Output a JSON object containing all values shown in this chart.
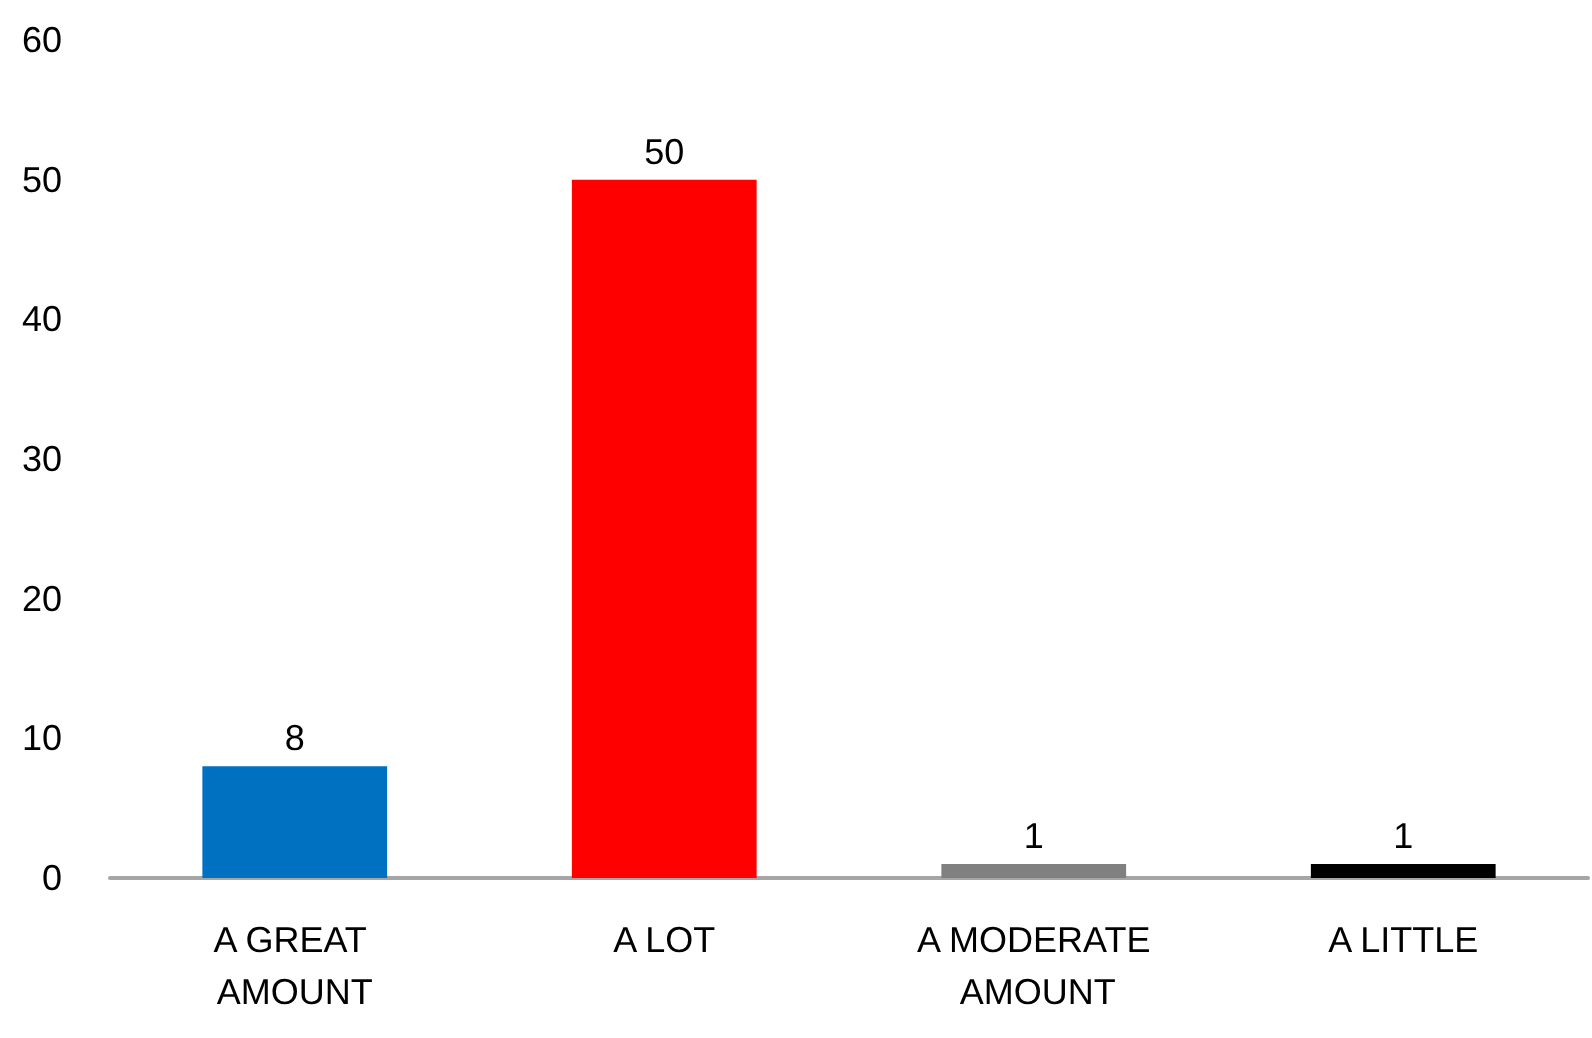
{
  "chart_data": {
    "type": "bar",
    "categories": [
      "A GREAT AMOUNT",
      "A LOT",
      "A MODERATE AMOUNT",
      "A LITTLE"
    ],
    "values": [
      8,
      50,
      1,
      1
    ],
    "colors": [
      "#0070c0",
      "#ff0000",
      "#808080",
      "#000000"
    ],
    "ylim": [
      0,
      60
    ],
    "yticks": [
      0,
      10,
      20,
      30,
      40,
      50,
      60
    ],
    "grid": false,
    "data_labels": true
  }
}
